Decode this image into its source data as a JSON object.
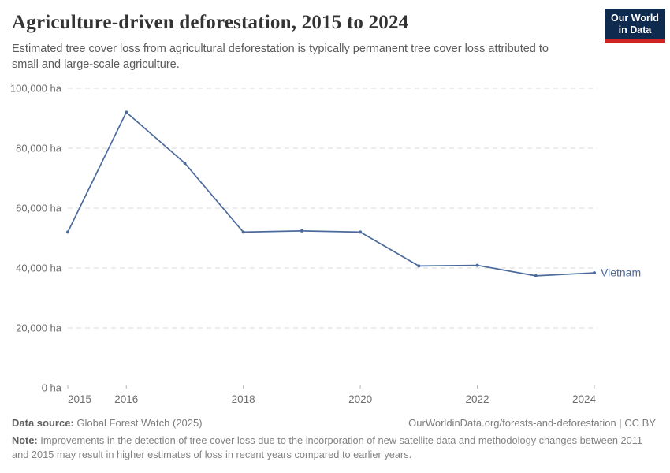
{
  "header": {
    "title": "Agriculture-driven deforestation, 2015 to 2024",
    "subtitle": "Estimated tree cover loss from agricultural deforestation is typically permanent tree cover loss attributed to small and large-scale agriculture.",
    "logo": {
      "line1": "Our World",
      "line2": "in Data",
      "bg_color": "#0e2a4e",
      "accent_color": "#cf2423"
    }
  },
  "chart_data": {
    "type": "line",
    "title": "Agriculture-driven deforestation, 2015 to 2024",
    "x": [
      2015,
      2016,
      2017,
      2018,
      2019,
      2020,
      2021,
      2022,
      2023,
      2024
    ],
    "series": [
      {
        "name": "Vietnam",
        "values": [
          52000,
          92000,
          75000,
          52000,
          52400,
          52000,
          40700,
          40900,
          37400,
          38400
        ],
        "color": "#4C6A9C"
      }
    ],
    "end_label": "Vietnam",
    "unit": "ha",
    "ylim": [
      0,
      100000
    ],
    "yticks": [
      0,
      20000,
      40000,
      60000,
      80000,
      100000
    ],
    "ytick_labels": [
      "0 ha",
      "20,000 ha",
      "40,000 ha",
      "60,000 ha",
      "80,000 ha",
      "100,000 ha"
    ],
    "xticks": [
      2015,
      2016,
      2018,
      2020,
      2022,
      2024
    ],
    "xtick_labels": [
      "2015",
      "2016",
      "2018",
      "2020",
      "2022",
      "2024"
    ],
    "grid": "horizontal-dashed",
    "grid_color": "#d8d8d8",
    "axis_color": "#b3b3b3",
    "tick_label_color": "#6d6d6d",
    "legend_position": "end-of-line"
  },
  "footer": {
    "source_label": "Data source:",
    "source_value": " Global Forest Watch (2025)",
    "link": "OurWorldinData.org/forests-and-deforestation | CC BY",
    "note_label": "Note:",
    "note_value": " Improvements in the detection of tree cover loss due to the incorporation of new satellite data and methodology changes between 2011 and 2015 may result in higher estimates of loss in recent years compared to earlier years."
  }
}
